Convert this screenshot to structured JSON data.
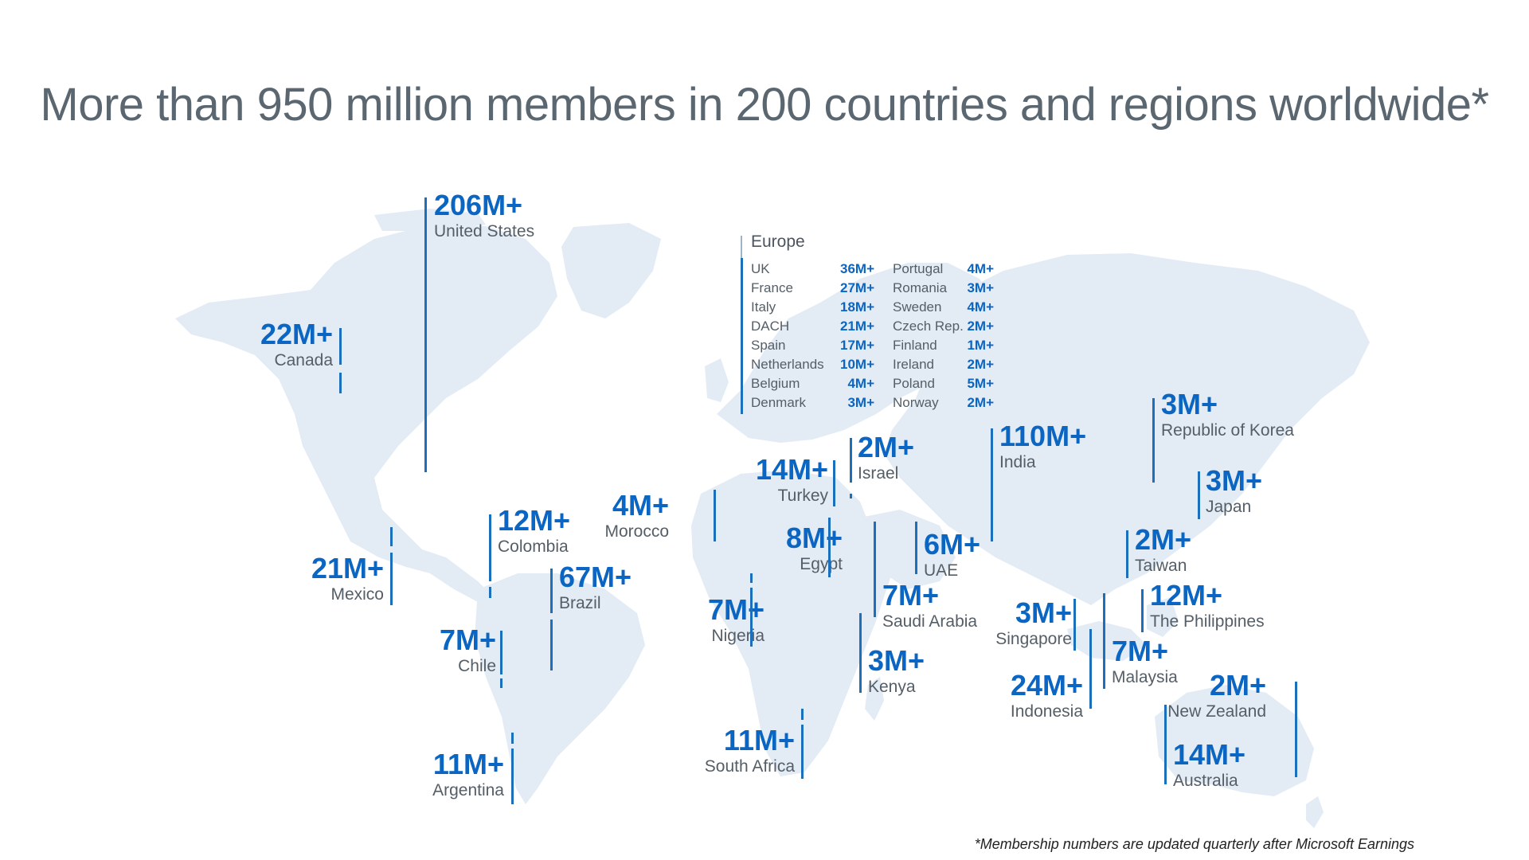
{
  "title": "More than 950 million members in 200 countries and regions worldwide*",
  "footnote": "*Membership numbers are updated quarterly after Microsoft Earnings",
  "colors": {
    "accent": "#0a66c2",
    "land": "#e3ebf5",
    "title": "#5b6770"
  },
  "markers": [
    {
      "id": "united-states",
      "value": "206M+",
      "label": "United States"
    },
    {
      "id": "canada",
      "value": "22M+",
      "label": "Canada"
    },
    {
      "id": "mexico",
      "value": "21M+",
      "label": "Mexico"
    },
    {
      "id": "colombia",
      "value": "12M+",
      "label": "Colombia"
    },
    {
      "id": "brazil",
      "value": "67M+",
      "label": "Brazil"
    },
    {
      "id": "chile",
      "value": "7M+",
      "label": "Chile"
    },
    {
      "id": "argentina",
      "value": "11M+",
      "label": "Argentina"
    },
    {
      "id": "morocco",
      "value": "4M+",
      "label": "Morocco"
    },
    {
      "id": "turkey",
      "value": "14M+",
      "label": "Turkey"
    },
    {
      "id": "israel",
      "value": "2M+",
      "label": "Israel"
    },
    {
      "id": "egypt",
      "value": "8M+",
      "label": "Egypt"
    },
    {
      "id": "uae",
      "value": "6M+",
      "label": "UAE"
    },
    {
      "id": "saudi-arabia",
      "value": "7M+",
      "label": "Saudi Arabia"
    },
    {
      "id": "nigeria",
      "value": "7M+",
      "label": "Nigeria"
    },
    {
      "id": "kenya",
      "value": "3M+",
      "label": "Kenya"
    },
    {
      "id": "south-africa",
      "value": "11M+",
      "label": "South Africa"
    },
    {
      "id": "india",
      "value": "110M+",
      "label": "India"
    },
    {
      "id": "korea",
      "value": "3M+",
      "label": "Republic of Korea"
    },
    {
      "id": "japan",
      "value": "3M+",
      "label": "Japan"
    },
    {
      "id": "taiwan",
      "value": "2M+",
      "label": "Taiwan"
    },
    {
      "id": "philippines",
      "value": "12M+",
      "label": "The Philippines"
    },
    {
      "id": "singapore",
      "value": "3M+",
      "label": "Singapore"
    },
    {
      "id": "malaysia",
      "value": "7M+",
      "label": "Malaysia"
    },
    {
      "id": "indonesia",
      "value": "24M+",
      "label": "Indonesia"
    },
    {
      "id": "new-zealand",
      "value": "2M+",
      "label": "New Zealand"
    },
    {
      "id": "australia",
      "value": "14M+",
      "label": "Australia"
    }
  ],
  "europe": {
    "title": "Europe",
    "left": [
      {
        "name": "UK",
        "value": "36M+"
      },
      {
        "name": "France",
        "value": "27M+"
      },
      {
        "name": "Italy",
        "value": "18M+"
      },
      {
        "name": "DACH",
        "value": "21M+"
      },
      {
        "name": "Spain",
        "value": "17M+"
      },
      {
        "name": "Netherlands",
        "value": "10M+"
      },
      {
        "name": "Belgium",
        "value": "4M+"
      },
      {
        "name": "Denmark",
        "value": "3M+"
      }
    ],
    "right": [
      {
        "name": "Portugal",
        "value": "4M+"
      },
      {
        "name": "Romania",
        "value": "3M+"
      },
      {
        "name": "Sweden",
        "value": "4M+"
      },
      {
        "name": "Czech Rep.",
        "value": "2M+"
      },
      {
        "name": "Finland",
        "value": "1M+"
      },
      {
        "name": "Ireland",
        "value": "2M+"
      },
      {
        "name": "Poland",
        "value": "5M+"
      },
      {
        "name": "Norway",
        "value": "2M+"
      }
    ]
  }
}
